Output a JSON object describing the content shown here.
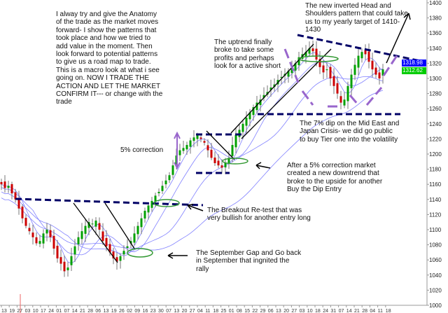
{
  "chart_data": {
    "type": "candlestick",
    "title": "",
    "xlabel": "",
    "ylabel": "",
    "ylim": [
      1000,
      1400
    ],
    "yticks": [
      1000,
      1020,
      1040,
      1060,
      1080,
      1100,
      1120,
      1140,
      1160,
      1180,
      1200,
      1220,
      1240,
      1260,
      1280,
      1300,
      1320,
      1340,
      1360,
      1380,
      1400
    ],
    "xtick_labels": [
      "13",
      "19",
      "27",
      "03",
      "10",
      "17",
      "24",
      "01",
      "07",
      "14",
      "21",
      "28",
      "06",
      "13",
      "19",
      "26",
      "02",
      "09",
      "16",
      "23",
      "30",
      "07",
      "13",
      "20",
      "27",
      "04",
      "11",
      "18",
      "25",
      "01",
      "08",
      "15",
      "22",
      "29",
      "06",
      "13",
      "20",
      "27",
      "03",
      "10",
      "18",
      "24",
      "31",
      "07",
      "14",
      "21",
      "28",
      "04",
      "11",
      "18"
    ],
    "close": [
      1160,
      1155,
      1158,
      1148,
      1140,
      1128,
      1115,
      1105,
      1098,
      1090,
      1082,
      1085,
      1095,
      1100,
      1090,
      1075,
      1062,
      1055,
      1045,
      1050,
      1065,
      1078,
      1090,
      1098,
      1105,
      1110,
      1108,
      1112,
      1100,
      1085,
      1078,
      1070,
      1062,
      1058,
      1065,
      1072,
      1078,
      1085,
      1095,
      1105,
      1115,
      1125,
      1132,
      1138,
      1145,
      1150,
      1158,
      1165,
      1172,
      1185,
      1198,
      1205,
      1208,
      1212,
      1218,
      1222,
      1225,
      1220,
      1215,
      1205,
      1195,
      1188,
      1185,
      1182,
      1188,
      1195,
      1212,
      1225,
      1232,
      1240,
      1248,
      1255,
      1262,
      1268,
      1272,
      1278,
      1282,
      1288,
      1292,
      1298,
      1302,
      1306,
      1310,
      1314,
      1320,
      1328,
      1332,
      1335,
      1340,
      1336,
      1325,
      1315,
      1308,
      1312,
      1300,
      1290,
      1280,
      1268,
      1272,
      1290,
      1305,
      1318,
      1330,
      1335,
      1332,
      1322,
      1312,
      1305,
      1300,
      1312
    ],
    "price_tags": [
      {
        "label": "1318.98",
        "value": 1318.98,
        "color": "#0000ff"
      },
      {
        "label": "1312.62",
        "value": 1312.62,
        "color": "#00cc00"
      }
    ],
    "colors": {
      "up": "#00a000",
      "down": "#cc0000",
      "moving_average": "#8080ff",
      "trendline": "#000066",
      "pattern": "#9966cc",
      "highlight": "#339933"
    },
    "grid": false
  },
  "annotations": {
    "intro": "I alway try and give the Anatomy\nof the trade as the market moves\nforward-  I show the patterns that\ntook place and how we tried to\nadd value in the moment.  Then\nlook forward to potential patterns\nto give us a road map to trade.\nThis is a macro look at what i see\ngoing on.  NOW I TRADE THE\nACTION AND LET THE MARKET\nCONFIRM IT--- or change with the\ntrade",
    "uptrend": "The uptrend finally\nbroke to take some\nprofits and perhaps\nlook for a active short",
    "head_shoulders": "The new inverted Head and\nShoulders pattern that could take\nus to my yearly target of 1410-\n1430",
    "dip": "The 7% dip on the Mid East and\nJapan Crisis- we did go public\nto buy Tier one into the volatility",
    "correction_label": "5% correction",
    "after_correction": "After a 5% correction market\ncreated a new downtrend that\nbroke to the upside for another\nBuy the Dip Entry",
    "breakout": "The Breakout Re-test that was\nvery bullish for another entry long",
    "september": "The September Gap and Go back\nin September that ingnited the\nrally"
  }
}
